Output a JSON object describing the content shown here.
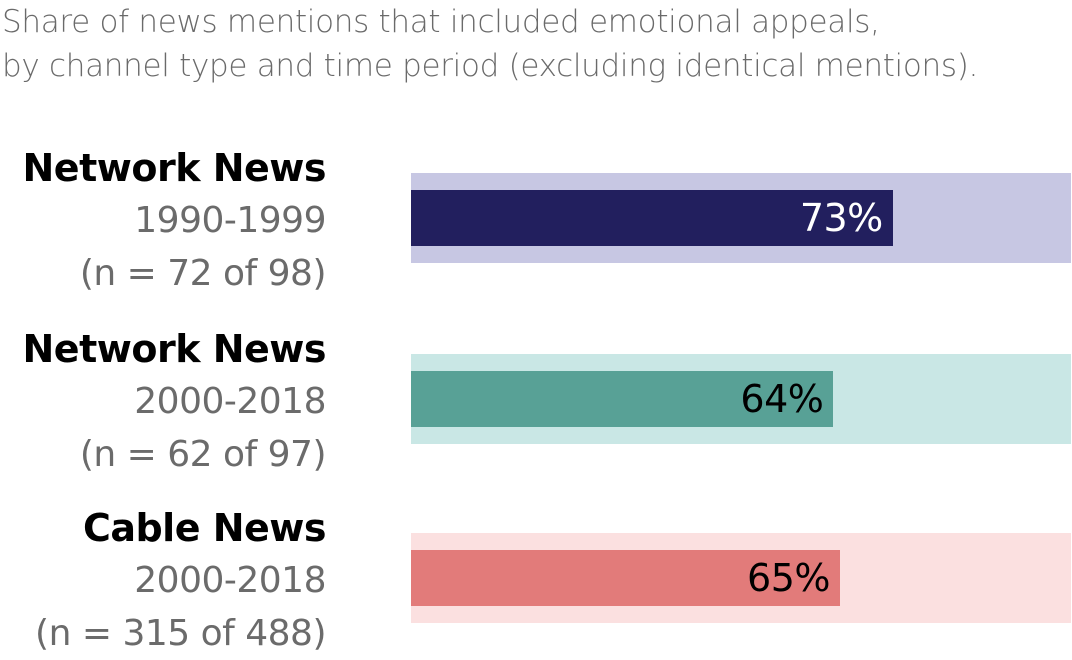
{
  "subtitle": {
    "line1": "Share of news mentions that included emotional appeals,",
    "line2": "by channel type and time period (excluding identical mentions)."
  },
  "chart_data": {
    "type": "bar",
    "orientation": "horizontal",
    "ylim": [
      0,
      100
    ],
    "series": [
      {
        "name": "Network News",
        "period": "1990-1999",
        "count_label": "(n = 72 of 98)",
        "value": 73,
        "value_label": "73%",
        "track_color": "#c7c7e3",
        "bar_color": "#221f5e",
        "text_color": "#ffffff"
      },
      {
        "name": "Network News",
        "period": "2000-2018",
        "count_label": "(n = 62 of 97)",
        "value": 64,
        "value_label": "64%",
        "track_color": "#c9e7e5",
        "bar_color": "#58a196",
        "text_color": "#000000"
      },
      {
        "name": "Cable News",
        "period": "2000-2018",
        "count_label": "(n = 315 of 488)",
        "value": 65,
        "value_label": "65%",
        "track_color": "#fbe0e0",
        "bar_color": "#e27b7a",
        "text_color": "#000000"
      }
    ]
  }
}
